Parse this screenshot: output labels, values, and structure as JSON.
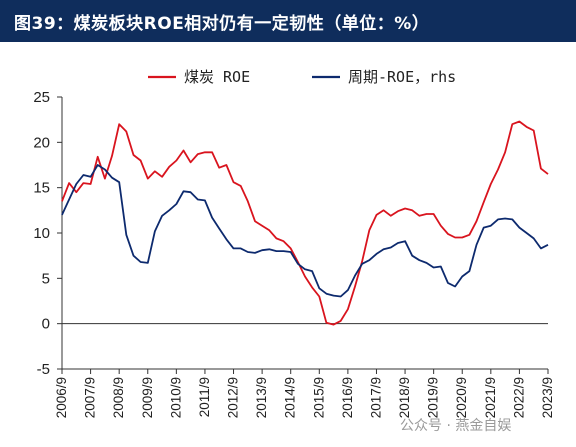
{
  "header": {
    "title": "图39：煤炭板块ROE相对仍有一定韧性（单位：%）"
  },
  "watermark": {
    "text": "公众号 · 燕金自娱"
  },
  "colors": {
    "title_bg": "#0f2d5c",
    "coal_line": "#d9141e",
    "cycle_line": "#0d2a6e"
  },
  "chart_data": {
    "type": "line",
    "title": "图39：煤炭板块ROE相对仍有一定韧性（单位：%）",
    "xlabel": "",
    "ylabel": "",
    "ylim": [
      -5,
      25
    ],
    "yticks": [
      "25",
      "20",
      "15",
      "10",
      "5",
      "0",
      "-5"
    ],
    "xticks": [
      "2006/9",
      "2007/9",
      "2008/9",
      "2009/9",
      "2010/9",
      "2011/9",
      "2012/9",
      "2013/9",
      "2014/9",
      "2015/9",
      "2016/9",
      "2017/9",
      "2018/9",
      "2019/9",
      "2020/9",
      "2021/9",
      "2022/9",
      "2023/9"
    ],
    "x": [
      "2006/9",
      "2006/12",
      "2007/3",
      "2007/6",
      "2007/9",
      "2007/12",
      "2008/3",
      "2008/6",
      "2008/9",
      "2008/12",
      "2009/3",
      "2009/6",
      "2009/9",
      "2009/12",
      "2010/3",
      "2010/6",
      "2010/9",
      "2010/12",
      "2011/3",
      "2011/6",
      "2011/9",
      "2011/12",
      "2012/3",
      "2012/6",
      "2012/9",
      "2012/12",
      "2013/3",
      "2013/6",
      "2013/9",
      "2013/12",
      "2014/3",
      "2014/6",
      "2014/9",
      "2014/12",
      "2015/3",
      "2015/6",
      "2015/9",
      "2015/12",
      "2016/3",
      "2016/6",
      "2016/9",
      "2016/12",
      "2017/3",
      "2017/6",
      "2017/9",
      "2017/12",
      "2018/3",
      "2018/6",
      "2018/9",
      "2018/12",
      "2019/3",
      "2019/6",
      "2019/9",
      "2019/12",
      "2020/3",
      "2020/6",
      "2020/9",
      "2020/12",
      "2021/3",
      "2021/6",
      "2021/9",
      "2021/12",
      "2022/3",
      "2022/6",
      "2022/9",
      "2022/12",
      "2023/3",
      "2023/6",
      "2023/9"
    ],
    "legend_position": "top",
    "series": [
      {
        "name": "煤炭 ROE",
        "axis": "left",
        "values": [
          13.5,
          15.5,
          14.5,
          15.5,
          15.4,
          18.4,
          16.0,
          18.5,
          22.0,
          21.2,
          18.6,
          18.0,
          16.0,
          16.8,
          16.2,
          17.3,
          18.0,
          19.1,
          17.8,
          18.7,
          18.9,
          18.9,
          17.2,
          17.5,
          15.6,
          15.2,
          13.5,
          11.3,
          10.8,
          10.3,
          9.4,
          9.1,
          8.3,
          6.8,
          5.2,
          4.0,
          3.0,
          0.1,
          -0.1,
          0.3,
          1.6,
          4.1,
          6.9,
          10.3,
          12.0,
          12.5,
          11.9,
          12.4,
          12.7,
          12.5,
          11.9,
          12.1,
          12.1,
          10.8,
          9.9,
          9.5,
          9.5,
          9.8,
          11.3,
          13.4,
          15.4,
          17.0,
          18.9,
          22.0,
          22.3,
          21.7,
          21.3,
          17.1,
          16.5
        ]
      },
      {
        "name": "周期-ROE，rhs",
        "axis": "right",
        "values": [
          12.0,
          13.7,
          15.4,
          16.4,
          16.2,
          17.5,
          17.0,
          16.1,
          15.6,
          9.8,
          7.5,
          6.8,
          6.7,
          10.2,
          11.9,
          12.5,
          13.2,
          14.6,
          14.5,
          13.7,
          13.6,
          11.7,
          10.5,
          9.3,
          8.3,
          8.3,
          7.9,
          7.8,
          8.1,
          8.2,
          8.0,
          8.0,
          7.9,
          6.6,
          6.0,
          5.8,
          3.9,
          3.3,
          3.1,
          3.0,
          3.7,
          5.3,
          6.6,
          7.0,
          7.7,
          8.2,
          8.4,
          8.9,
          9.1,
          7.5,
          7.0,
          6.7,
          6.2,
          6.3,
          4.5,
          4.1,
          5.2,
          5.8,
          8.7,
          10.6,
          10.8,
          11.5,
          11.6,
          11.5,
          10.6,
          10.0,
          9.4,
          8.3,
          8.7
        ]
      }
    ]
  }
}
